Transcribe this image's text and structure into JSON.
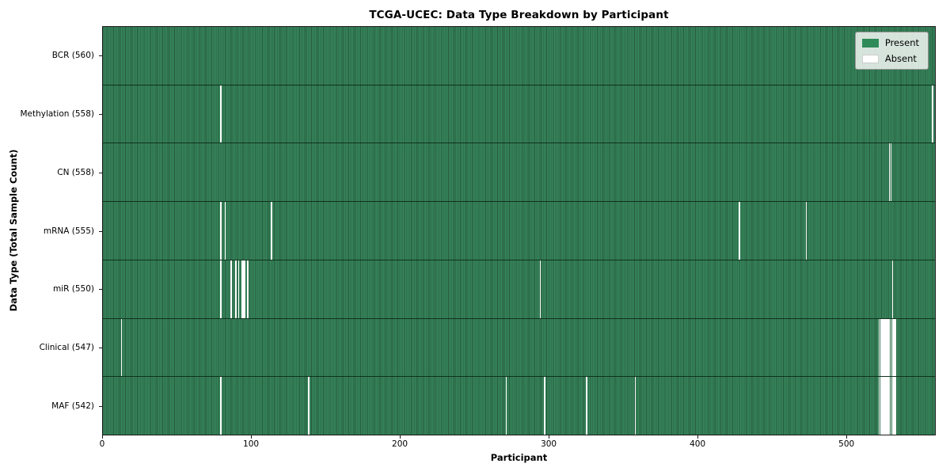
{
  "chart_data": {
    "type": "heatmap",
    "title": "TCGA-UCEC: Data Type Breakdown by Participant",
    "xlabel": "Participant",
    "ylabel": "Data Type (Total Sample Count)",
    "n_participants": 560,
    "x_range": [
      0,
      560
    ],
    "x_ticks": [
      "0",
      "100",
      "200",
      "300",
      "400",
      "500"
    ],
    "x_tick_values": [
      0,
      100,
      200,
      300,
      400,
      500
    ],
    "grid": false,
    "legend_position": "upper right",
    "present_color": "#2e8b57",
    "absent_color": "#ffffff",
    "legend": [
      {
        "label": "Present",
        "color": "#2e8b57",
        "border": "#2e8b57"
      },
      {
        "label": "Absent",
        "color": "#ffffff",
        "border": "#cccccc"
      }
    ],
    "rows": [
      {
        "name": "bcr",
        "label": "BCR (560)",
        "present_count": 560,
        "absent_count": 0,
        "absent_participants": []
      },
      {
        "name": "methylation",
        "label": "Methylation (558)",
        "present_count": 558,
        "absent_count": 2,
        "absent_participants": [
          79,
          558
        ]
      },
      {
        "name": "cn",
        "label": "CN (558)",
        "present_count": 558,
        "absent_count": 2,
        "absent_participants": [
          529,
          530
        ]
      },
      {
        "name": "mrna",
        "label": "mRNA (555)",
        "present_count": 555,
        "absent_count": 5,
        "absent_participants": [
          79,
          82,
          113,
          428,
          473
        ]
      },
      {
        "name": "mir",
        "label": "miR (550)",
        "present_count": 550,
        "absent_count": 10,
        "absent_participants": [
          79,
          86,
          89,
          91,
          93,
          94,
          95,
          97,
          294,
          531
        ]
      },
      {
        "name": "clinical",
        "label": "Clinical (547)",
        "present_count": 547,
        "absent_count": 13,
        "absent_participants": [
          12,
          522,
          523,
          524,
          525,
          526,
          527,
          528,
          529,
          530,
          531,
          532,
          533
        ]
      },
      {
        "name": "maf",
        "label": "MAF (542)",
        "present_count": 542,
        "absent_count": 18,
        "absent_participants": [
          79,
          138,
          271,
          297,
          325,
          358,
          522,
          523,
          524,
          525,
          526,
          527,
          528,
          529,
          530,
          531,
          532,
          533
        ]
      }
    ]
  }
}
